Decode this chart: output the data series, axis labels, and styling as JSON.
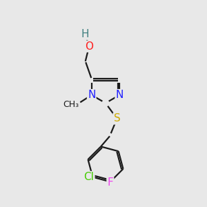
{
  "background_color": "#e8e8e8",
  "bond_color": "#1a1a1a",
  "atom_colors": {
    "O": "#ff2020",
    "H": "#408080",
    "N": "#2020ff",
    "S": "#ccaa00",
    "Cl": "#44cc00",
    "F": "#ee44ee",
    "C": "#1a1a1a"
  },
  "lw": 1.6,
  "fs": 11,
  "fs_small": 9
}
